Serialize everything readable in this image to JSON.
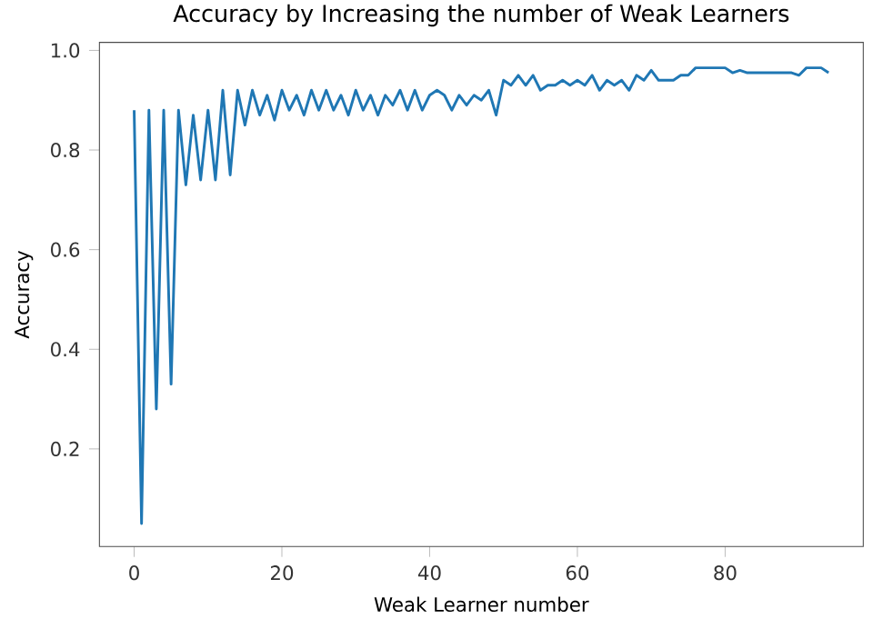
{
  "chart_data": {
    "type": "line",
    "title": "Accuracy by Increasing the number of Weak Learners",
    "xlabel": "Weak Learner number",
    "ylabel": "Accuracy",
    "x": [
      0,
      1,
      2,
      3,
      4,
      5,
      6,
      7,
      8,
      9,
      10,
      11,
      12,
      13,
      14,
      15,
      16,
      17,
      18,
      19,
      20,
      21,
      22,
      23,
      24,
      25,
      26,
      27,
      28,
      29,
      30,
      31,
      32,
      33,
      34,
      35,
      36,
      37,
      38,
      39,
      40,
      41,
      42,
      43,
      44,
      45,
      46,
      47,
      48,
      49,
      50,
      51,
      52,
      53,
      54,
      55,
      56,
      57,
      58,
      59,
      60,
      61,
      62,
      63,
      64,
      65,
      66,
      67,
      68,
      69,
      70,
      71,
      72,
      73,
      74,
      75,
      76,
      77,
      78,
      79,
      80,
      81,
      82,
      83,
      84,
      85,
      86,
      87,
      88,
      89,
      90,
      91,
      92,
      93,
      94
    ],
    "series": [
      {
        "color": "#1f77b4",
        "values": [
          0.88,
          0.05,
          0.88,
          0.28,
          0.88,
          0.33,
          0.88,
          0.73,
          0.87,
          0.74,
          0.88,
          0.74,
          0.92,
          0.75,
          0.92,
          0.85,
          0.92,
          0.87,
          0.91,
          0.86,
          0.92,
          0.88,
          0.91,
          0.87,
          0.92,
          0.88,
          0.92,
          0.88,
          0.91,
          0.87,
          0.92,
          0.88,
          0.91,
          0.87,
          0.91,
          0.89,
          0.92,
          0.88,
          0.92,
          0.88,
          0.91,
          0.92,
          0.91,
          0.88,
          0.91,
          0.89,
          0.91,
          0.9,
          0.92,
          0.87,
          0.94,
          0.93,
          0.95,
          0.93,
          0.95,
          0.92,
          0.93,
          0.93,
          0.94,
          0.93,
          0.94,
          0.93,
          0.95,
          0.92,
          0.94,
          0.93,
          0.94,
          0.92,
          0.95,
          0.94,
          0.96,
          0.94,
          0.94,
          0.94,
          0.95,
          0.95,
          0.965,
          0.965,
          0.965,
          0.965,
          0.965,
          0.955,
          0.96,
          0.955,
          0.955,
          0.955,
          0.955,
          0.955,
          0.955,
          0.955,
          0.95,
          0.965,
          0.965,
          0.965,
          0.955
        ]
      }
    ],
    "xlim": [
      -4.7,
      98.7
    ],
    "ylim": [
      0.004,
      1.016
    ],
    "xticks": [
      0,
      20,
      40,
      60,
      80
    ],
    "yticks": [
      0.2,
      0.4,
      0.6,
      0.8,
      {
        "value": 1,
        "label": "1.0"
      }
    ],
    "marker": "none",
    "line_style": "solid",
    "grid": false,
    "legend": false
  }
}
